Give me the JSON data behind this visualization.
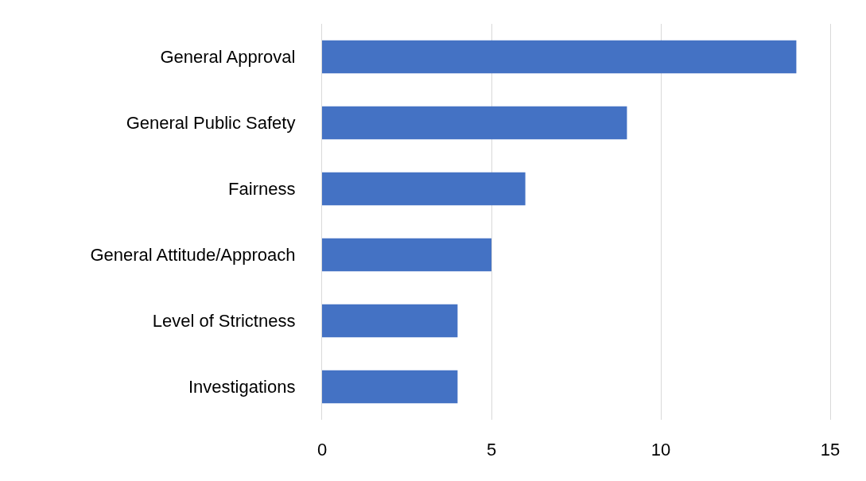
{
  "chart_data": {
    "type": "bar",
    "orientation": "horizontal",
    "categories": [
      "General Approval",
      "General Public Safety",
      "Fairness",
      "General Attitude/Approach",
      "Level of Strictness",
      "Investigations"
    ],
    "values": [
      14,
      9,
      6,
      5,
      4,
      4
    ],
    "color": "#4472c4",
    "xlim": [
      0,
      15
    ],
    "xticks": [
      0,
      5,
      10,
      15
    ],
    "grid": "x"
  }
}
